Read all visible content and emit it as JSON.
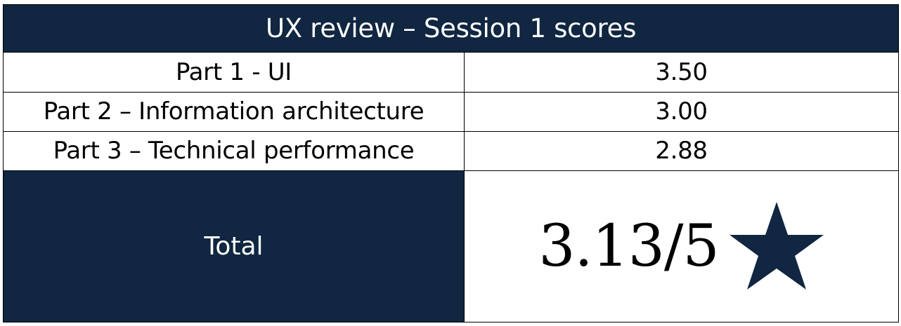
{
  "table": {
    "title": "UX review – Session 1 scores",
    "rows": [
      {
        "label": "Part 1 - UI",
        "score": "3.50"
      },
      {
        "label": "Part 2 – Information architecture",
        "score": "3.00"
      },
      {
        "label": "Part 3 – Technical performance",
        "score": "2.88"
      }
    ],
    "total": {
      "label": "Total",
      "value": "3.13/5",
      "icon": "star-icon"
    }
  },
  "colors": {
    "header_bg": "#102641",
    "header_text": "#ffffff",
    "star": "#102641",
    "border": "#000000"
  }
}
